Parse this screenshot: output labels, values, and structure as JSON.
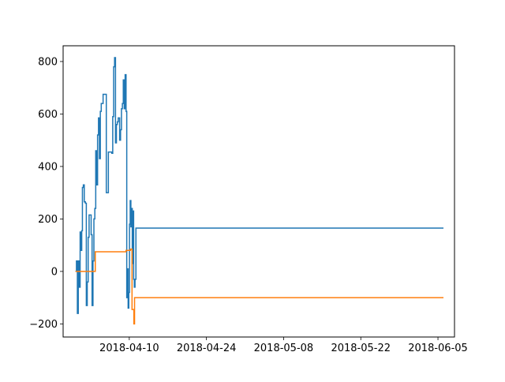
{
  "chart_data": {
    "type": "line",
    "title": "",
    "xlabel": "",
    "ylabel": "",
    "x_axis_type": "date",
    "xlim": [
      "2018-03-29",
      "2018-06-08"
    ],
    "ylim": [
      -250,
      860
    ],
    "x_ticks": [
      "2018-04-10",
      "2018-04-24",
      "2018-05-08",
      "2018-05-22",
      "2018-06-05"
    ],
    "y_ticks": [
      -200,
      0,
      200,
      400,
      600,
      800
    ],
    "grid": false,
    "legend": "none",
    "series": [
      {
        "color": "#1f77b4",
        "drawstyle": "steps-post",
        "points": [
          [
            "2018-03-31 06:00",
            0
          ],
          [
            "2018-03-31 10:00",
            40
          ],
          [
            "2018-03-31 14:00",
            -160
          ],
          [
            "2018-03-31 18:00",
            40
          ],
          [
            "2018-03-31 22:00",
            -60
          ],
          [
            "2018-04-01 02:00",
            150
          ],
          [
            "2018-04-01 06:00",
            80
          ],
          [
            "2018-04-01 09:00",
            155
          ],
          [
            "2018-04-01 12:00",
            320
          ],
          [
            "2018-04-01 16:00",
            330
          ],
          [
            "2018-04-01 20:00",
            265
          ],
          [
            "2018-04-02 01:00",
            260
          ],
          [
            "2018-04-02 05:00",
            -130
          ],
          [
            "2018-04-02 09:00",
            -40
          ],
          [
            "2018-04-02 13:00",
            130
          ],
          [
            "2018-04-02 17:00",
            215
          ],
          [
            "2018-04-03 02:00",
            140
          ],
          [
            "2018-04-03 06:00",
            -130
          ],
          [
            "2018-04-03 10:00",
            40
          ],
          [
            "2018-04-03 14:00",
            200
          ],
          [
            "2018-04-03 18:00",
            240
          ],
          [
            "2018-04-03 22:00",
            460
          ],
          [
            "2018-04-04 02:00",
            330
          ],
          [
            "2018-04-04 06:00",
            520
          ],
          [
            "2018-04-04 10:00",
            585
          ],
          [
            "2018-04-04 14:00",
            430
          ],
          [
            "2018-04-04 18:00",
            610
          ],
          [
            "2018-04-04 22:00",
            640
          ],
          [
            "2018-04-05 06:00",
            675
          ],
          [
            "2018-04-05 20:00",
            300
          ],
          [
            "2018-04-06 05:00",
            455
          ],
          [
            "2018-04-06 20:00",
            450
          ],
          [
            "2018-04-07 00:00",
            590
          ],
          [
            "2018-04-07 04:00",
            780
          ],
          [
            "2018-04-07 08:00",
            815
          ],
          [
            "2018-04-07 12:00",
            490
          ],
          [
            "2018-04-07 16:00",
            560
          ],
          [
            "2018-04-07 20:00",
            570
          ],
          [
            "2018-04-08 00:00",
            585
          ],
          [
            "2018-04-08 06:00",
            500
          ],
          [
            "2018-04-08 10:00",
            540
          ],
          [
            "2018-04-08 14:00",
            620
          ],
          [
            "2018-04-08 18:00",
            640
          ],
          [
            "2018-04-08 22:00",
            730
          ],
          [
            "2018-04-09 02:00",
            620
          ],
          [
            "2018-04-09 06:00",
            750
          ],
          [
            "2018-04-09 10:00",
            610
          ],
          [
            "2018-04-09 13:00",
            -100
          ],
          [
            "2018-04-09 16:00",
            10
          ],
          [
            "2018-04-09 19:00",
            -140
          ],
          [
            "2018-04-09 22:00",
            -80
          ],
          [
            "2018-04-10 01:00",
            180
          ],
          [
            "2018-04-10 04:00",
            270
          ],
          [
            "2018-04-10 07:00",
            170
          ],
          [
            "2018-04-10 10:00",
            240
          ],
          [
            "2018-04-10 13:00",
            30
          ],
          [
            "2018-04-10 16:00",
            230
          ],
          [
            "2018-04-10 19:00",
            -30
          ],
          [
            "2018-04-10 22:00",
            -60
          ],
          [
            "2018-04-11 01:00",
            -30
          ],
          [
            "2018-04-11 05:00",
            165
          ],
          [
            "2018-06-06 00:00",
            165
          ]
        ]
      },
      {
        "color": "#ff7f0e",
        "drawstyle": "steps-post",
        "points": [
          [
            "2018-03-31 06:00",
            0
          ],
          [
            "2018-04-03 20:00",
            75
          ],
          [
            "2018-04-09 10:00",
            80
          ],
          [
            "2018-04-10 05:00",
            85
          ],
          [
            "2018-04-10 12:00",
            -145
          ],
          [
            "2018-04-10 20:00",
            -200
          ],
          [
            "2018-04-10 23:00",
            -100
          ],
          [
            "2018-06-06 00:00",
            -100
          ]
        ]
      }
    ]
  }
}
